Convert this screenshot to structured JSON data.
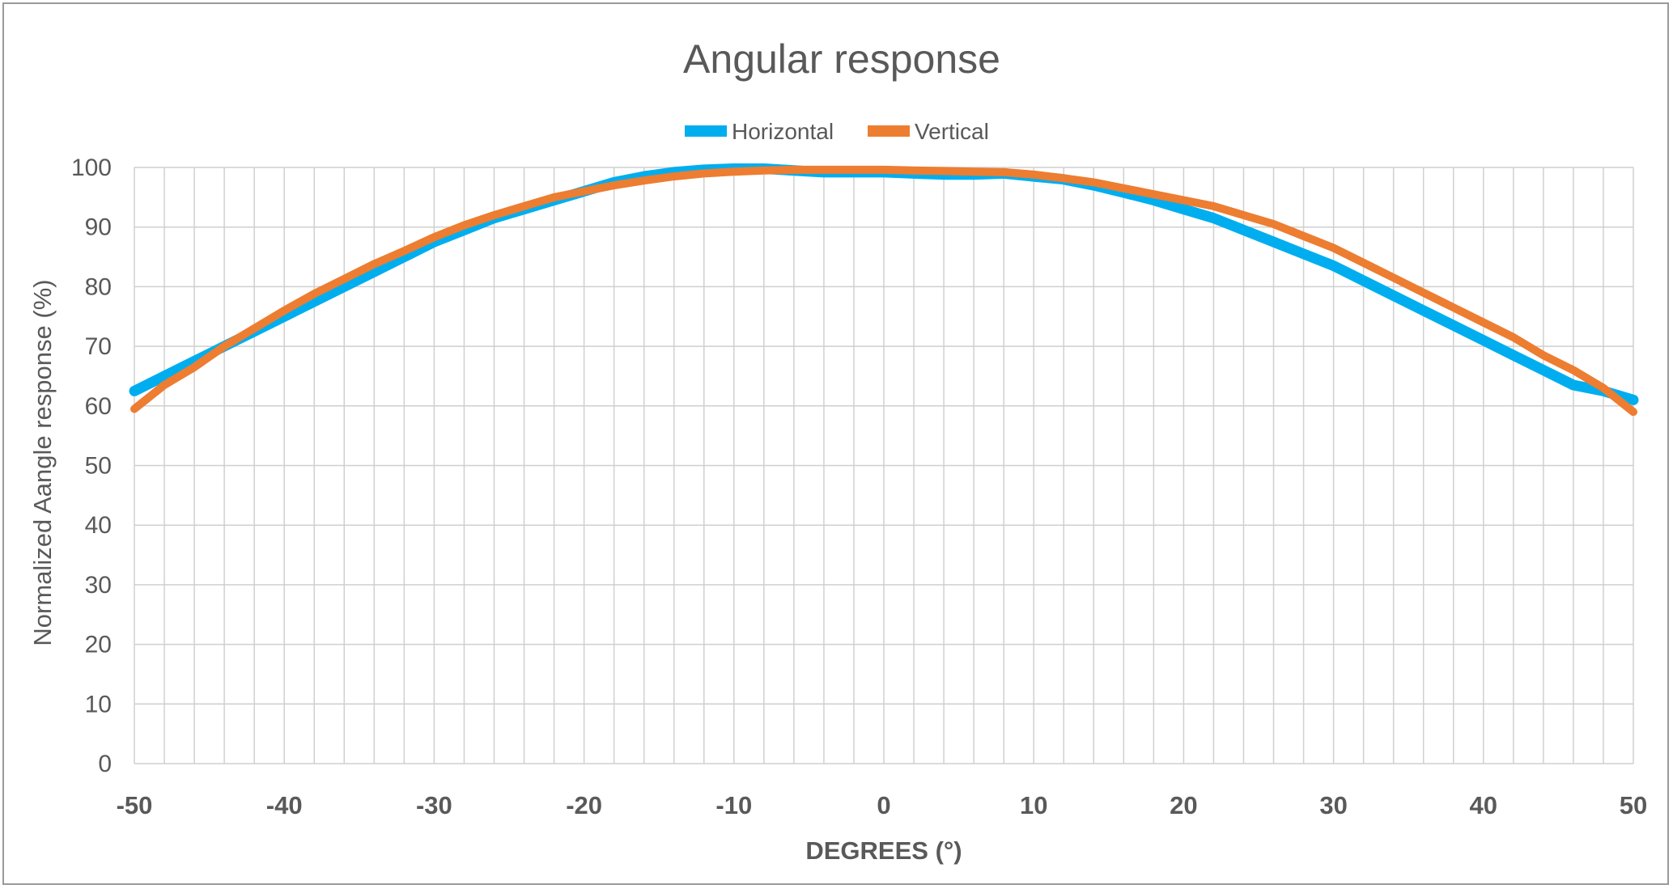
{
  "chart_data": {
    "type": "line",
    "title": "Angular response",
    "xlabel": "DEGREES (°)",
    "ylabel": "Normalized Aangle response  (%)",
    "xlim": [
      -50,
      50
    ],
    "ylim": [
      0,
      100
    ],
    "x_ticks": [
      -50,
      -40,
      -30,
      -20,
      -10,
      0,
      10,
      20,
      30,
      40,
      50
    ],
    "y_ticks": [
      0,
      10,
      20,
      30,
      40,
      50,
      60,
      70,
      80,
      90,
      100
    ],
    "x_minor_step": 2,
    "grid": true,
    "legend_position": "top-center",
    "x": [
      -50,
      -48,
      -46,
      -44,
      -42,
      -40,
      -38,
      -36,
      -34,
      -32,
      -30,
      -28,
      -26,
      -24,
      -22,
      -20,
      -18,
      -16,
      -14,
      -12,
      -10,
      -8,
      -6,
      -4,
      -2,
      0,
      2,
      4,
      6,
      8,
      10,
      12,
      14,
      16,
      18,
      20,
      22,
      24,
      26,
      28,
      30,
      32,
      34,
      36,
      38,
      40,
      42,
      44,
      46,
      48,
      50
    ],
    "series": [
      {
        "name": "Horizontal",
        "color": "#00AEEF",
        "values": [
          62.5,
          65,
          67.5,
          70,
          72.5,
          75,
          77.5,
          80,
          82.5,
          85,
          87.5,
          89.5,
          91.5,
          93,
          94.5,
          96,
          97.5,
          98.5,
          99.2,
          99.6,
          99.8,
          99.8,
          99.5,
          99.2,
          99.2,
          99.2,
          99,
          98.8,
          98.8,
          99,
          98.5,
          98,
          97,
          95.8,
          94.5,
          93,
          91.5,
          89.5,
          87.5,
          85.5,
          83.5,
          81,
          78.5,
          76,
          73.5,
          71,
          68.5,
          66,
          63.5,
          62.5,
          61
        ]
      },
      {
        "name": "Vertical",
        "color": "#ED7D31",
        "values": [
          59.5,
          63.5,
          66.5,
          70,
          73,
          76,
          78.8,
          81.3,
          83.8,
          86,
          88.3,
          90.3,
          92,
          93.5,
          95,
          96,
          97,
          97.8,
          98.5,
          99,
          99.3,
          99.5,
          99.6,
          99.6,
          99.6,
          99.6,
          99.5,
          99.4,
          99.3,
          99.2,
          98.8,
          98.2,
          97.5,
          96.5,
          95.5,
          94.5,
          93.5,
          92,
          90.5,
          88.5,
          86.5,
          84,
          81.5,
          79,
          76.5,
          74,
          71.5,
          68.5,
          66,
          63,
          59
        ]
      }
    ]
  }
}
